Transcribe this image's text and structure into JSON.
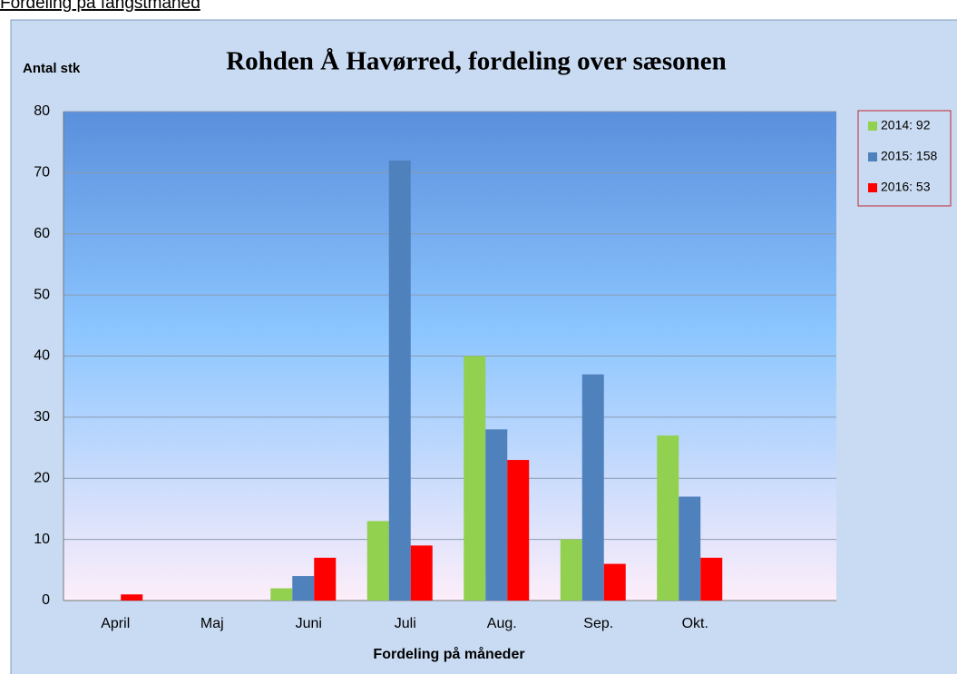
{
  "page_heading": "Fordeling på fangstmåned",
  "chart_data": {
    "type": "bar",
    "title": "Rohden Å Havørred, fordeling over sæsonen",
    "y_label": "Antal stk",
    "x_label": "Fordeling  på måneder",
    "categories": [
      "April",
      "Maj",
      "Juni",
      "Juli",
      "Aug.",
      "Sep.",
      "Okt.",
      null
    ],
    "series": [
      {
        "name": "2014: 92",
        "color": "#92d050",
        "values": [
          0,
          0,
          2,
          13,
          40,
          10,
          27,
          null
        ]
      },
      {
        "name": "2015: 158",
        "color": "#4f81bd",
        "values": [
          0,
          0,
          4,
          72,
          28,
          37,
          17,
          null
        ]
      },
      {
        "name": "2016: 53",
        "color": "#ff0000",
        "values": [
          1,
          0,
          7,
          9,
          23,
          6,
          7,
          null
        ]
      }
    ],
    "ylim": [
      0,
      80
    ],
    "yticks": [
      0,
      10,
      20,
      30,
      40,
      50,
      60,
      70,
      80
    ],
    "grid": true,
    "legend": "right"
  }
}
